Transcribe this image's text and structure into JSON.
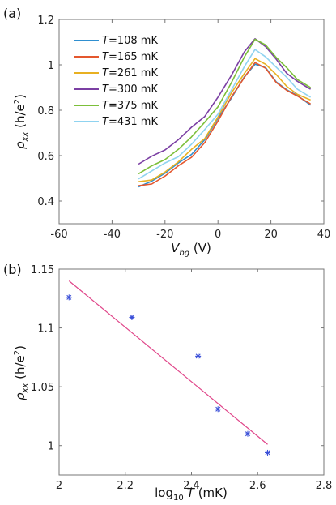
{
  "chart_data": [
    {
      "type": "line",
      "panel_label": "(a)",
      "xlabel_main": "V",
      "xlabel_sub": "bg",
      "xlabel_unit": " (V)",
      "ylabel_main": "ρ",
      "ylabel_sub": "xx",
      "ylabel_unit": " (h/e",
      "ylabel_sup": "2",
      "ylabel_close": ")",
      "xlim": [
        -60,
        40
      ],
      "ylim": [
        0.3,
        1.2
      ],
      "xticks": [
        -60,
        -40,
        -20,
        0,
        20,
        40
      ],
      "yticks": [
        0.4,
        0.6,
        0.8,
        1,
        1.2
      ],
      "legend_position": "top-left",
      "x": [
        -30,
        -25,
        -20,
        -15,
        -10,
        -5,
        0,
        5,
        10,
        14,
        18,
        22,
        26,
        30,
        35
      ],
      "series": [
        {
          "name": "108 mK",
          "color": "#2f8fd0",
          "values": [
            0.47,
            0.49,
            0.52,
            0.56,
            0.61,
            0.67,
            0.76,
            0.86,
            0.95,
            1.0,
            0.98,
            0.93,
            0.89,
            0.86,
            0.83
          ]
        },
        {
          "name": "165 mK",
          "color": "#e4572e",
          "values": [
            0.46,
            0.48,
            0.51,
            0.55,
            0.6,
            0.66,
            0.75,
            0.85,
            0.95,
            1.01,
            0.98,
            0.93,
            0.89,
            0.86,
            0.82
          ]
        },
        {
          "name": "261 mK",
          "color": "#e8b021",
          "values": [
            0.48,
            0.5,
            0.53,
            0.57,
            0.62,
            0.68,
            0.77,
            0.87,
            0.97,
            1.03,
            1.0,
            0.95,
            0.91,
            0.87,
            0.84
          ]
        },
        {
          "name": "300 mK",
          "color": "#7b3fa3",
          "values": [
            0.56,
            0.59,
            0.63,
            0.67,
            0.72,
            0.78,
            0.86,
            0.95,
            1.05,
            1.12,
            1.08,
            1.02,
            0.97,
            0.93,
            0.89
          ]
        },
        {
          "name": "375 mK",
          "color": "#7cbf3a",
          "values": [
            0.52,
            0.55,
            0.59,
            0.63,
            0.68,
            0.74,
            0.82,
            0.92,
            1.03,
            1.12,
            1.09,
            1.03,
            0.98,
            0.94,
            0.9
          ]
        },
        {
          "name": "431 mK",
          "color": "#8fd3f0",
          "values": [
            0.5,
            0.53,
            0.56,
            0.6,
            0.65,
            0.71,
            0.79,
            0.89,
            0.99,
            1.06,
            1.04,
            0.99,
            0.94,
            0.9,
            0.86
          ]
        }
      ],
      "legend_prefix": "T",
      "legend_eq": "="
    },
    {
      "type": "scatter",
      "panel_label": "(b)",
      "xlabel_main": "log",
      "xlabel_sub": "10",
      "xlabel_var": "T",
      "xlabel_unit": " (mK)",
      "ylabel_main": "ρ",
      "ylabel_sub": "xx",
      "ylabel_unit": " (h/e",
      "ylabel_sup": "2",
      "ylabel_close": ")",
      "xlim": [
        2,
        2.8
      ],
      "ylim": [
        0.975,
        1.15
      ],
      "xticks": [
        2,
        2.2,
        2.4,
        2.6,
        2.8
      ],
      "yticks": [
        1,
        1.05,
        1.1,
        1.15
      ],
      "points": [
        {
          "x": 2.03,
          "y": 1.126
        },
        {
          "x": 2.22,
          "y": 1.109
        },
        {
          "x": 2.42,
          "y": 1.076
        },
        {
          "x": 2.48,
          "y": 1.031
        },
        {
          "x": 2.57,
          "y": 1.01
        },
        {
          "x": 2.63,
          "y": 0.994
        }
      ],
      "marker_color": "#3a4fd8",
      "fit_line": {
        "x": [
          2.03,
          2.63
        ],
        "y": [
          1.14,
          1.001
        ],
        "color": "#e0468a"
      }
    }
  ]
}
